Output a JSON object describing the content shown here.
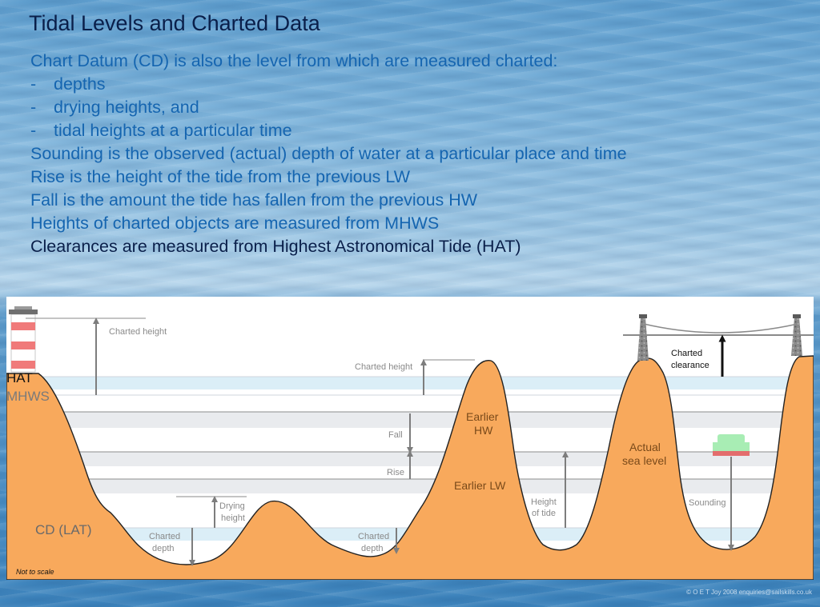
{
  "title": "Tidal Levels and Charted Data",
  "lines": [
    {
      "text": "Chart Datum (CD) is also the level from which are measured charted:",
      "style": "plain"
    },
    {
      "dash": "-",
      "text": "depths",
      "style": "bullet"
    },
    {
      "dash": "-",
      "text": "drying heights, and",
      "style": "bullet"
    },
    {
      "dash": "-",
      "text": "tidal heights at a particular time",
      "style": "bullet"
    },
    {
      "text": "Sounding is the observed (actual) depth of water at a particular place and time",
      "style": "plain"
    },
    {
      "text": "Rise is the height of the tide from the previous LW",
      "style": "plain"
    },
    {
      "text": "Fall is the amount the tide has fallen from the previous HW",
      "style": "plain"
    },
    {
      "text": "Heights of charted objects are measured from MHWS",
      "style": "plain"
    },
    {
      "text": "Clearances are measured from Highest Astronomical Tide (HAT)",
      "style": "dark"
    }
  ],
  "diagram": {
    "levels": {
      "hat": "HAT",
      "mhws": "MHWS",
      "cd": "CD (LAT)"
    },
    "labels": {
      "charted_height_1": "Charted height",
      "charted_height_2": "Charted height",
      "fall": "Fall",
      "rise": "Rise",
      "earlier_hw_1": "Earlier",
      "earlier_hw_2": "HW",
      "earlier_lw": "Earlier LW",
      "drying_1": "Drying",
      "drying_2": "height",
      "charted_depth_1a": "Charted",
      "charted_depth_1b": "depth",
      "charted_depth_2a": "Charted",
      "charted_depth_2b": "depth",
      "height_of_tide_1": "Height",
      "height_of_tide_2": "of tide",
      "actual_1": "Actual",
      "actual_2": "sea level",
      "sounding": "Sounding",
      "charted_clearance_1": "Charted",
      "charted_clearance_2": "clearance",
      "not_to_scale": "Not to scale"
    },
    "colors": {
      "land": "#f8a95c",
      "water_band": "#dbeef7",
      "grey_band": "#e9ebee",
      "arrow": "#7d7d7d",
      "boat_hull": "#e36d6d",
      "boat_top": "#a8edb4",
      "lighthouse_red": "#f07a7a"
    }
  },
  "footer": "© O E T Joy 2008 enquiries@sailskills.co.uk"
}
